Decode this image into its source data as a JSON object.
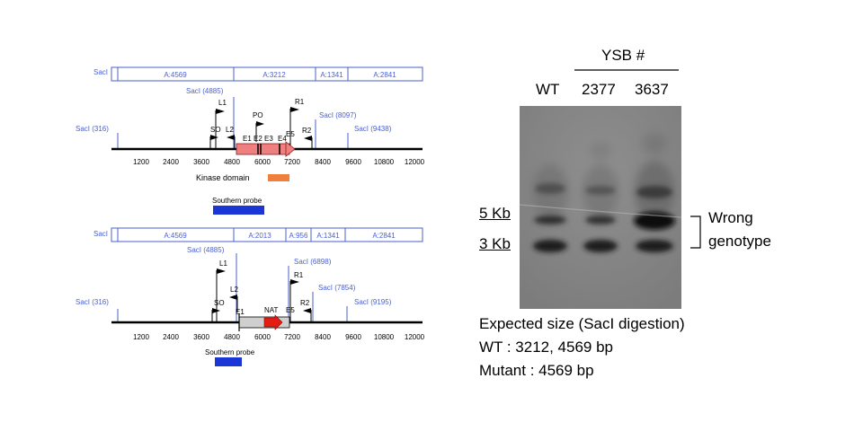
{
  "maps": [
    {
      "fragments": [
        "A:4569",
        "A:3212",
        "A:1341",
        "A:2841"
      ],
      "fragment_left_label": "SacI",
      "sites": [
        {
          "label": "SacI (316)",
          "bp": 316
        },
        {
          "label": "SacI (4885)",
          "bp": 4885
        },
        {
          "label": "SacI (8097)",
          "bp": 8097
        },
        {
          "label": "SacI (9438)",
          "bp": 9438
        }
      ],
      "primers": [
        "L1",
        "SO",
        "L2",
        "PO",
        "R1",
        "R2"
      ],
      "exons": [
        "E1",
        "E2",
        "E3",
        "E4",
        "E5"
      ],
      "ticks": [
        "1200",
        "2400",
        "3600",
        "4800",
        "6000",
        "7200",
        "8400",
        "9600",
        "10800",
        "12000"
      ],
      "domain_label": "Kinase domain",
      "probe_label": "Southern probe"
    },
    {
      "fragments": [
        "A:4569",
        "A:2013",
        "A:956",
        "A:1341",
        "A:2841"
      ],
      "fragment_left_label": "SacI",
      "sites": [
        {
          "label": "SacI (316)",
          "bp": 316
        },
        {
          "label": "SacI (4885)",
          "bp": 4885
        },
        {
          "label": "SacI (6898)",
          "bp": 6898
        },
        {
          "label": "SacI (7854)",
          "bp": 7854
        },
        {
          "label": "SacI (9195)",
          "bp": 9195
        }
      ],
      "primers": [
        "L1",
        "SO",
        "L2",
        "R1",
        "R2"
      ],
      "exons": [
        "E1",
        "E5"
      ],
      "marker_label": "NAT",
      "ticks": [
        "1200",
        "2400",
        "3600",
        "4800",
        "6000",
        "7200",
        "8400",
        "9600",
        "10800",
        "12000"
      ],
      "probe_label": "Southern probe"
    }
  ],
  "blot": {
    "group_label": "YSB #",
    "lanes": [
      "WT",
      "2377",
      "3637"
    ],
    "size_markers": [
      "5 Kb",
      "3 Kb"
    ],
    "bracket_label_line1": "Wrong",
    "bracket_label_line2": "genotype",
    "expected_title": "Expected size (SacI digestion)",
    "expected_wt": "WT : 3212, 4569 bp",
    "expected_mutant": "Mutant : 4569 bp"
  },
  "colors": {
    "map_blue": "#4a5fd0",
    "exon_fill": "#f08080",
    "kinase_orange": "#ef7f3a",
    "probe_blue": "#1a36d6",
    "nat_fill": "#cfcfcf",
    "nat_arrow": "#e21d14",
    "gel_bg": "#8a8a8a"
  }
}
